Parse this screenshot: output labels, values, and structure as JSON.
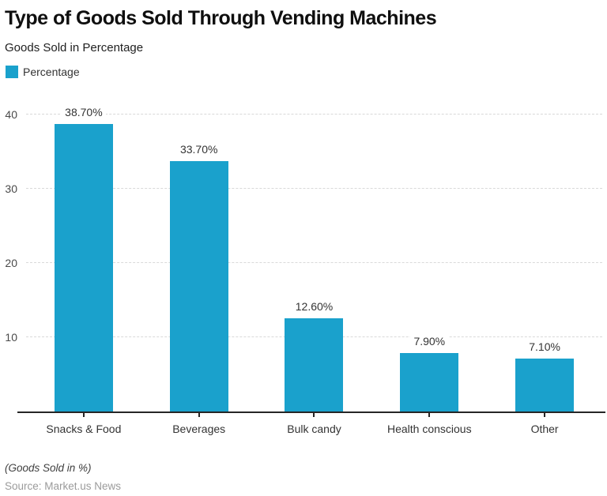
{
  "header": {
    "title": "Type of Goods Sold Through Vending Machines",
    "subtitle": "Goods Sold in Percentage"
  },
  "legend": {
    "label": "Percentage"
  },
  "colors": {
    "accent": "#1AA1CC",
    "axis_line": "#262626",
    "gridline": "#d9d9d9",
    "title_text": "#0f0f0f",
    "body_text": "#333333",
    "ytick_text": "#4a4a4a",
    "note_text": "#3f3f3f",
    "source_text": "#9b9b9b"
  },
  "chart_data": {
    "type": "bar",
    "title": "Type of Goods Sold Through Vending Machines",
    "subtitle": "Goods Sold in Percentage",
    "legend_entries": [
      "Percentage"
    ],
    "legend_position": "top-left",
    "categories": [
      "Snacks & Food",
      "Beverages",
      "Bulk candy",
      "Health conscious",
      "Other"
    ],
    "values": [
      38.7,
      33.7,
      12.6,
      7.9,
      7.1
    ],
    "value_labels": [
      "38.70%",
      "33.70%",
      "12.60%",
      "7.90%",
      "7.10%"
    ],
    "xlabel": "",
    "ylabel": "",
    "yticks": [
      10,
      20,
      30,
      40
    ],
    "ylim": [
      0,
      41.6
    ],
    "grid": true,
    "gridline_style": "dashed"
  },
  "footer": {
    "note": "(Goods Sold in %)",
    "source": "Source: Market.us News"
  }
}
